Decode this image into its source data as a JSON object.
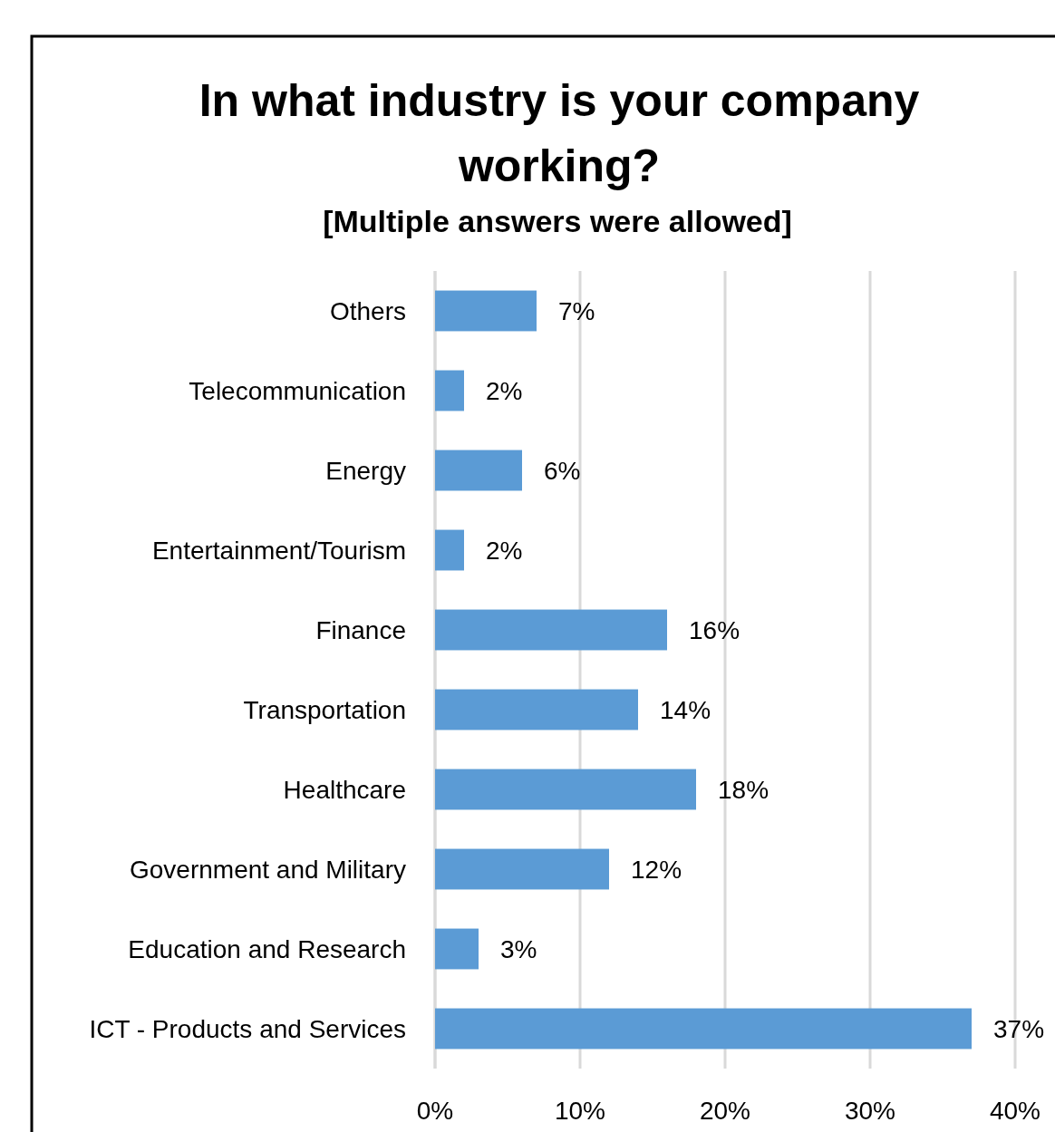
{
  "chart_data": {
    "type": "bar",
    "orientation": "horizontal",
    "title": "In what industry is your company working?",
    "subtitle": "[Multiple answers were allowed]",
    "categories": [
      "Others",
      "Telecommunication",
      "Energy",
      "Entertainment/Tourism",
      "Finance",
      "Transportation",
      "Healthcare",
      "Government and Military",
      "Education and Research",
      "ICT - Products and Services"
    ],
    "values": [
      7,
      2,
      6,
      2,
      16,
      14,
      18,
      12,
      3,
      37
    ],
    "value_labels": [
      "7%",
      "2%",
      "6%",
      "2%",
      "16%",
      "14%",
      "18%",
      "12%",
      "3%",
      "37%"
    ],
    "color": "#5b9bd5",
    "xlim": [
      0,
      40
    ],
    "xticks": [
      {
        "value": 0,
        "label": "0%"
      },
      {
        "value": 10,
        "label": "10%"
      },
      {
        "value": 20,
        "label": "20%"
      },
      {
        "value": 30,
        "label": "30%"
      },
      {
        "value": 40,
        "label": "40%"
      }
    ],
    "grid": "x"
  }
}
